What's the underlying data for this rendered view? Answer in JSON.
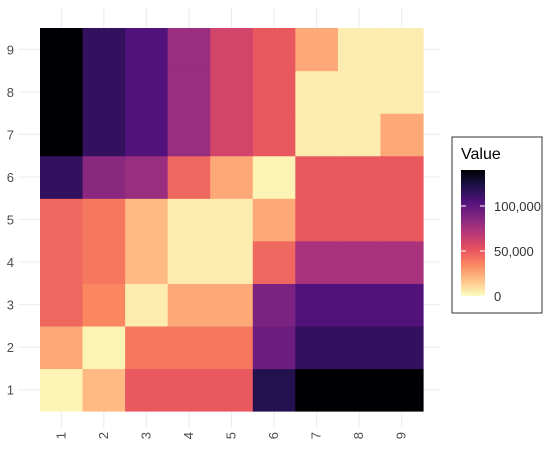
{
  "chart_data": {
    "type": "heatmap",
    "title": "",
    "xlabel": "",
    "ylabel": "",
    "x_categories": [
      "1",
      "2",
      "3",
      "4",
      "5",
      "6",
      "7",
      "8",
      "9"
    ],
    "y_categories": [
      "1",
      "2",
      "3",
      "4",
      "5",
      "6",
      "7",
      "8",
      "9"
    ],
    "values": [
      [
        3000,
        20000,
        50000,
        50000,
        50000,
        120000,
        140000,
        140000,
        140000
      ],
      [
        25000,
        3000,
        40000,
        40000,
        40000,
        95000,
        115000,
        115000,
        115000
      ],
      [
        45000,
        35000,
        5000,
        25000,
        25000,
        90000,
        105000,
        105000,
        105000
      ],
      [
        45000,
        40000,
        20000,
        5000,
        5000,
        45000,
        75000,
        75000,
        75000
      ],
      [
        45000,
        40000,
        20000,
        5000,
        5000,
        25000,
        50000,
        50000,
        50000
      ],
      [
        115000,
        85000,
        80000,
        45000,
        25000,
        3000,
        50000,
        50000,
        50000
      ],
      [
        140000,
        115000,
        105000,
        80000,
        60000,
        50000,
        5000,
        5000,
        25000
      ],
      [
        140000,
        115000,
        105000,
        80000,
        60000,
        50000,
        5000,
        5000,
        5000
      ],
      [
        140000,
        115000,
        105000,
        80000,
        60000,
        50000,
        25000,
        5000,
        5000
      ]
    ],
    "color_range": [
      0,
      140000
    ],
    "colorscale": [
      "#fcfdbf",
      "#fec287",
      "#fb8761",
      "#e6505f",
      "#b73779",
      "#822681",
      "#51127c",
      "#1d1147",
      "#000004"
    ],
    "grid": true,
    "legend": {
      "title": "Value",
      "position": "right",
      "ticks": [
        {
          "value": 0,
          "label": "0"
        },
        {
          "value": 50000,
          "label": "50,000"
        },
        {
          "value": 100000,
          "label": "100,000"
        }
      ]
    }
  }
}
